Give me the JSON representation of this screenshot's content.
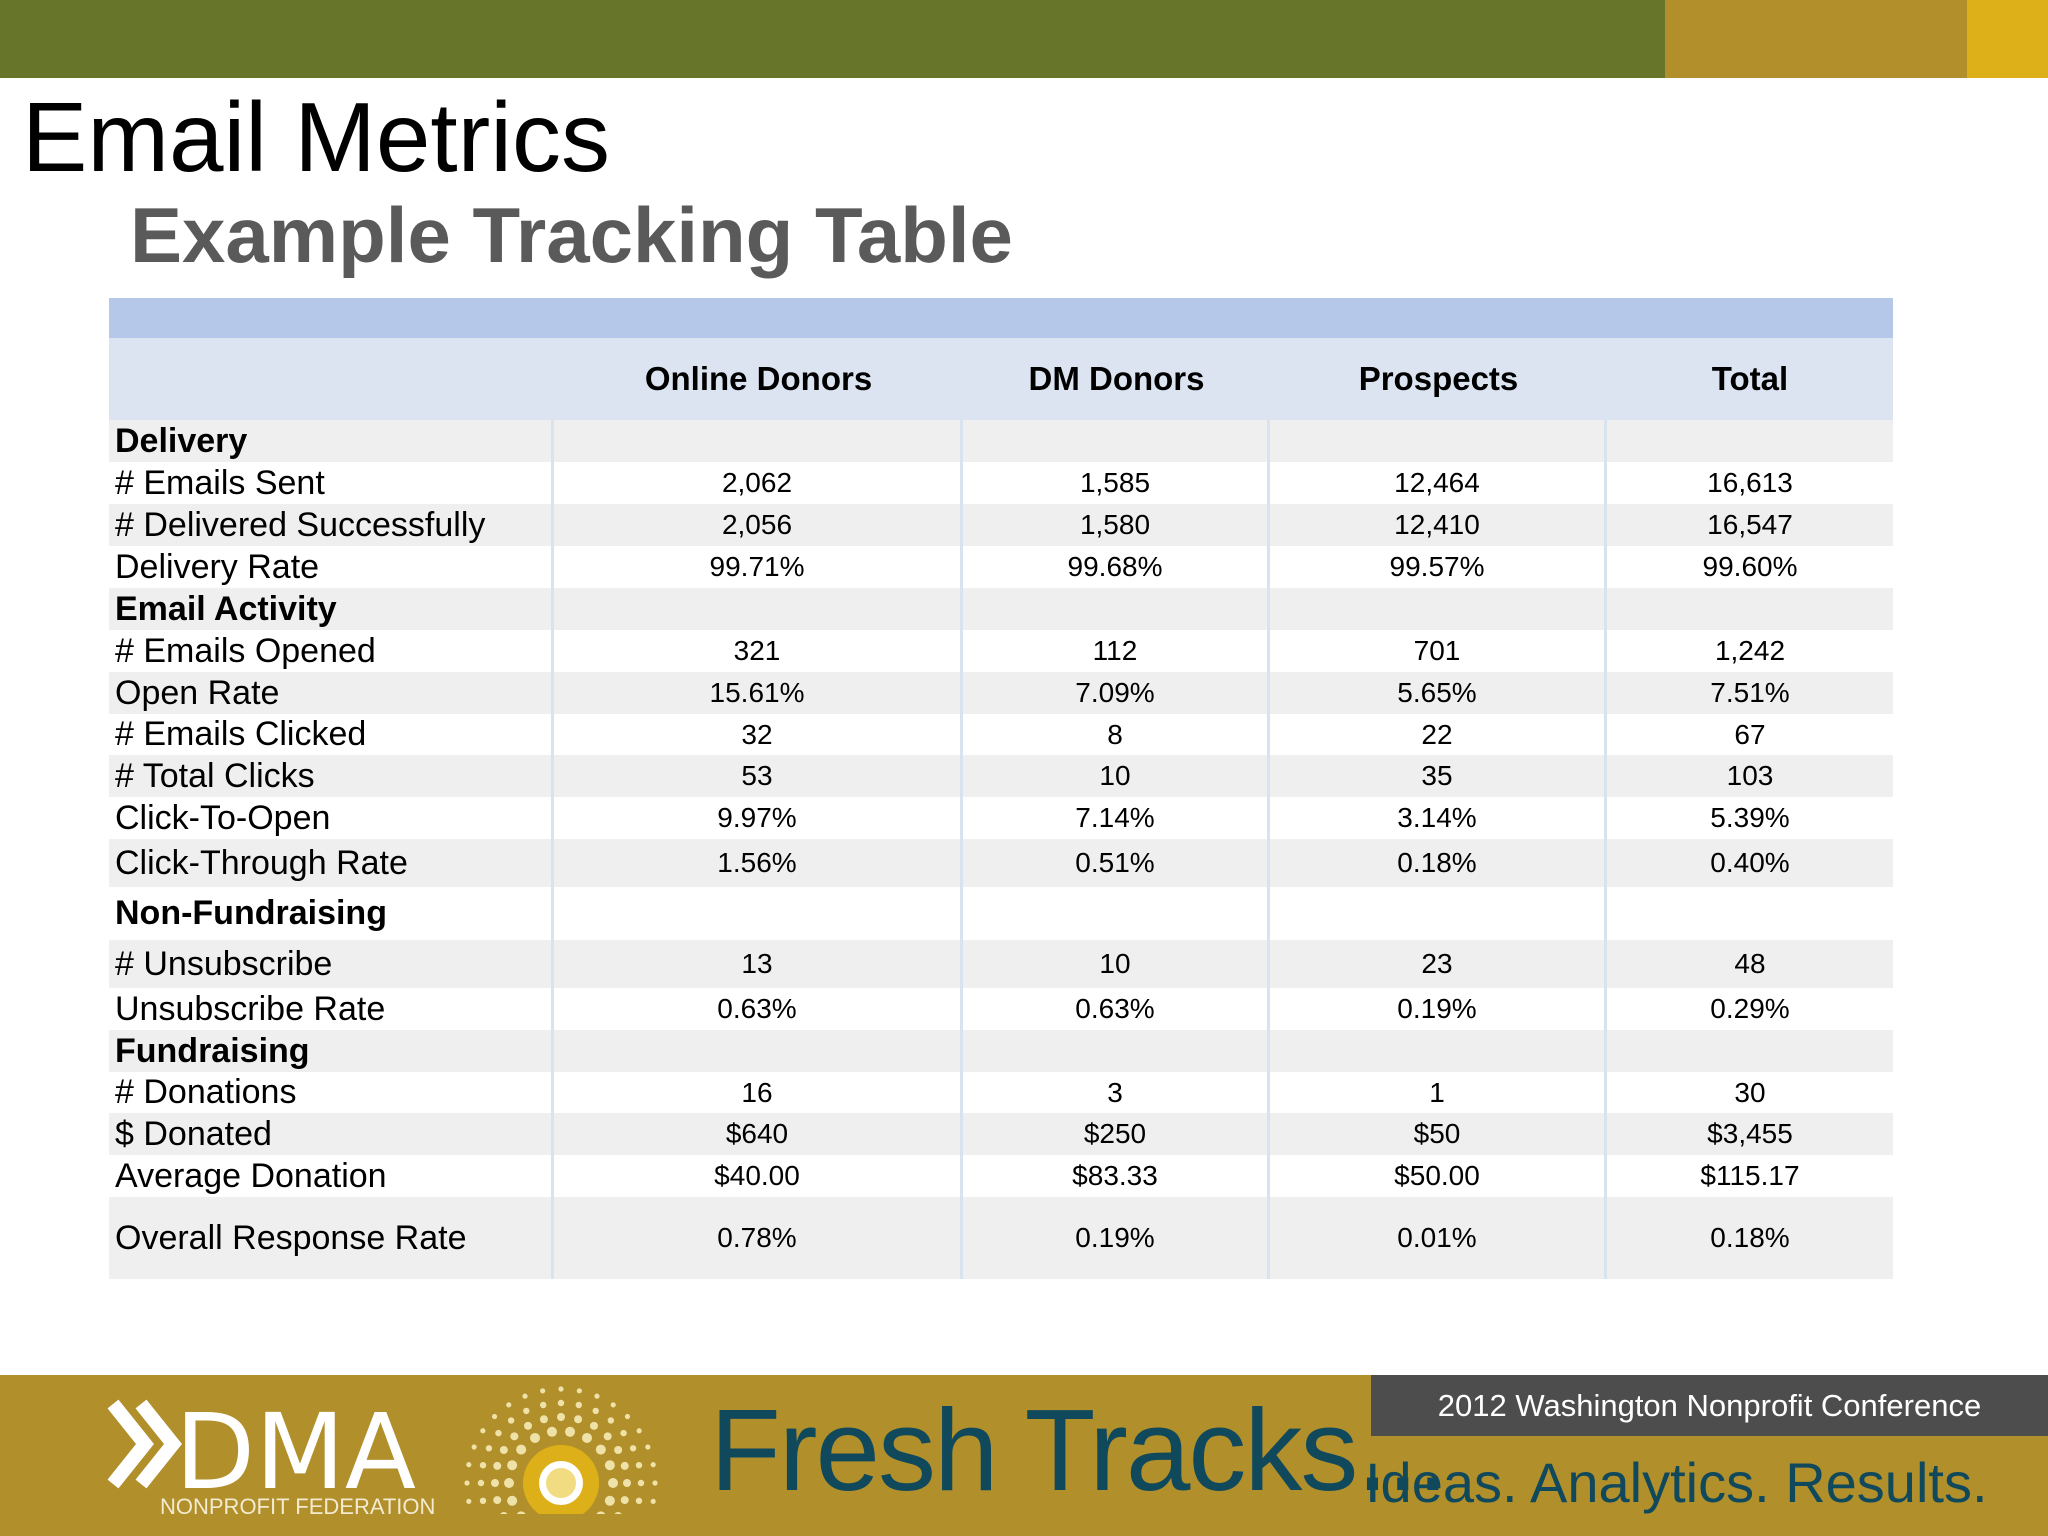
{
  "header": {
    "title": "Email Metrics",
    "subtitle": "Example Tracking Table"
  },
  "colors": {
    "band_green": "#67752a",
    "band_gold": "#b28f2a",
    "band_yellow": "#ddb01a",
    "table_header": "#dce4f2",
    "footer_gold": "#b18f2b",
    "footer_text_teal": "#11495c"
  },
  "table": {
    "columns": [
      "",
      "Online Donors",
      "DM Donors",
      "Prospects",
      "Total"
    ],
    "rows": [
      {
        "label": "Delivery",
        "section": true,
        "values": [
          "",
          "",
          "",
          ""
        ]
      },
      {
        "label": "# Emails Sent",
        "values": [
          "2,062",
          "1,585",
          "12,464",
          "16,613"
        ]
      },
      {
        "label": "# Delivered Successfully",
        "values": [
          "2,056",
          "1,580",
          "12,410",
          "16,547"
        ]
      },
      {
        "label": "Delivery Rate",
        "values": [
          "99.71%",
          "99.68%",
          "99.57%",
          "99.60%"
        ]
      },
      {
        "label": "Email Activity",
        "section": true,
        "values": [
          "",
          "",
          "",
          ""
        ]
      },
      {
        "label": "# Emails Opened",
        "values": [
          "321",
          "112",
          "701",
          "1,242"
        ]
      },
      {
        "label": "Open Rate",
        "values": [
          "15.61%",
          "7.09%",
          "5.65%",
          "7.51%"
        ]
      },
      {
        "label": "# Emails Clicked",
        "values": [
          "32",
          "8",
          "22",
          "67"
        ]
      },
      {
        "label": "# Total Clicks",
        "values": [
          "53",
          "10",
          "35",
          "103"
        ]
      },
      {
        "label": "Click-To-Open",
        "values": [
          "9.97%",
          "7.14%",
          "3.14%",
          "5.39%"
        ]
      },
      {
        "label": "Click-Through Rate",
        "values": [
          "1.56%",
          "0.51%",
          "0.18%",
          "0.40%"
        ]
      },
      {
        "label": "Non-Fundraising",
        "section": true,
        "values": [
          "",
          "",
          "",
          ""
        ]
      },
      {
        "label": "# Unsubscribe",
        "values": [
          "13",
          "10",
          "23",
          "48"
        ]
      },
      {
        "label": "Unsubscribe Rate",
        "values": [
          "0.63%",
          "0.63%",
          "0.19%",
          "0.29%"
        ]
      },
      {
        "label": "Fundraising",
        "section": true,
        "values": [
          "",
          "",
          "",
          ""
        ]
      },
      {
        "label": "# Donations",
        "values": [
          "16",
          "3",
          "1",
          "30"
        ]
      },
      {
        "label": "$ Donated",
        "values": [
          "$640",
          "$250",
          "$50",
          "$3,455"
        ]
      },
      {
        "label": "Average Donation",
        "values": [
          "$40.00",
          "$83.33",
          "$50.00",
          "$115.17"
        ]
      },
      {
        "label": "Overall Response Rate",
        "values": [
          "0.78%",
          "0.19%",
          "0.01%",
          "0.18%"
        ]
      }
    ]
  },
  "footer": {
    "logo_text": "DMA",
    "logo_tagline": "NONPROFIT FEDERATION",
    "brand": "Fresh Tracks...",
    "tagline": "Ideas. Analytics. Results.",
    "conference": "2012 Washington Nonprofit Conference"
  }
}
